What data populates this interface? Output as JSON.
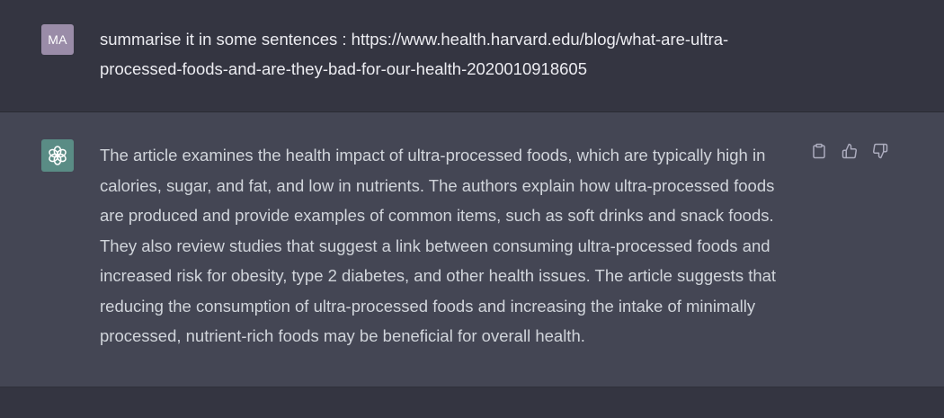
{
  "user_message": {
    "avatar_initials": "MA",
    "text": "summarise it in some sentences : https://www.health.harvard.edu/blog/what-are-ultra-processed-foods-and-are-they-bad-for-our-health-2020010918605"
  },
  "assistant_message": {
    "avatar_icon": "openai-logo-icon",
    "text": "The article examines the health impact of ultra-processed foods, which are typically high in calories, sugar, and fat, and low in nutrients. The authors explain how ultra-processed foods are produced and provide examples of common items, such as soft drinks and snack foods. They also review studies that suggest a link between consuming ultra-processed foods and increased risk for obesity, type 2 diabetes, and other health issues. The article suggests that reducing the consumption of ultra-processed foods and increasing the intake of minimally processed, nutrient-rich foods may be beneficial for overall health.",
    "actions": [
      {
        "icon": "clipboard-icon"
      },
      {
        "icon": "thumbs-up-icon"
      },
      {
        "icon": "thumbs-down-icon"
      }
    ]
  },
  "colors": {
    "user_background": "#343541",
    "assistant_background": "#444654",
    "user_avatar": "#9a8ca8",
    "assistant_avatar": "#5a8c85",
    "text": "#ececf1",
    "icon": "#acacbe"
  }
}
